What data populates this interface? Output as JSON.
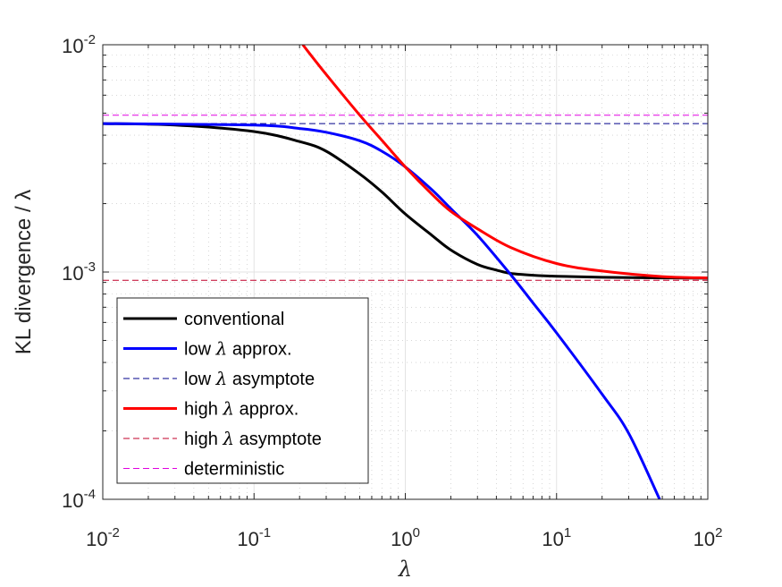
{
  "chart_data": {
    "type": "line",
    "xlabel": "λ",
    "ylabel": "KL divergence / λ",
    "xscale": "log",
    "yscale": "log",
    "xlim": [
      0.01,
      100
    ],
    "ylim": [
      0.0001,
      0.01
    ],
    "grid": true,
    "legend_position": "bottom-left",
    "x_ticks": [
      {
        "base": "10",
        "exp": "-2"
      },
      {
        "base": "10",
        "exp": "-1"
      },
      {
        "base": "10",
        "exp": "0"
      },
      {
        "base": "10",
        "exp": "1"
      },
      {
        "base": "10",
        "exp": "2"
      }
    ],
    "y_ticks": [
      {
        "base": "10",
        "exp": "-4"
      },
      {
        "base": "10",
        "exp": "-3"
      },
      {
        "base": "10",
        "exp": "-2"
      }
    ],
    "series": [
      {
        "name": "conventional",
        "color": "#000000",
        "style": "solid",
        "x": [
          0.01,
          0.03,
          0.1,
          0.2,
          0.3,
          0.5,
          0.7,
          1,
          1.5,
          2,
          3,
          4,
          5,
          7,
          10,
          20,
          50,
          100
        ],
        "y": [
          0.0045,
          0.00443,
          0.00415,
          0.00375,
          0.0034,
          0.0027,
          0.00225,
          0.0018,
          0.00145,
          0.00125,
          0.00108,
          0.00102,
          0.000985,
          0.000968,
          0.000958,
          0.000948,
          0.000942,
          0.00094
        ]
      },
      {
        "name": "low λ approx.",
        "color": "#0000ff",
        "style": "solid",
        "x": [
          0.01,
          0.1,
          0.2,
          0.3,
          0.5,
          0.7,
          1,
          1.5,
          2,
          3,
          5,
          7,
          10,
          20,
          30,
          48
        ],
        "y": [
          0.0045,
          0.00443,
          0.00428,
          0.00412,
          0.00378,
          0.0034,
          0.0029,
          0.0023,
          0.0019,
          0.00145,
          0.00097,
          0.00073,
          0.00054,
          0.00029,
          0.000195,
          0.0001
        ]
      },
      {
        "name": "low λ asymptote",
        "color": "#00008b",
        "style": "dashed",
        "x": [
          0.01,
          100
        ],
        "y": [
          0.0045,
          0.0045
        ]
      },
      {
        "name": "high λ approx.",
        "color": "#ff0000",
        "style": "solid",
        "x": [
          0.21,
          0.3,
          0.5,
          0.7,
          1,
          1.5,
          2,
          3,
          5,
          10,
          20,
          50,
          100
        ],
        "y": [
          0.01,
          0.0074,
          0.0049,
          0.0038,
          0.0029,
          0.0022,
          0.00185,
          0.00155,
          0.00128,
          0.00109,
          0.00101,
          0.000955,
          0.000942
        ]
      },
      {
        "name": "high λ asymptote",
        "color": "#c0002a",
        "style": "dashed",
        "x": [
          0.01,
          100
        ],
        "y": [
          0.00092,
          0.00092
        ]
      },
      {
        "name": "deterministic",
        "color": "#e000e0",
        "style": "dashed",
        "x": [
          0.01,
          100
        ],
        "y": [
          0.0049,
          0.0049
        ]
      }
    ]
  }
}
